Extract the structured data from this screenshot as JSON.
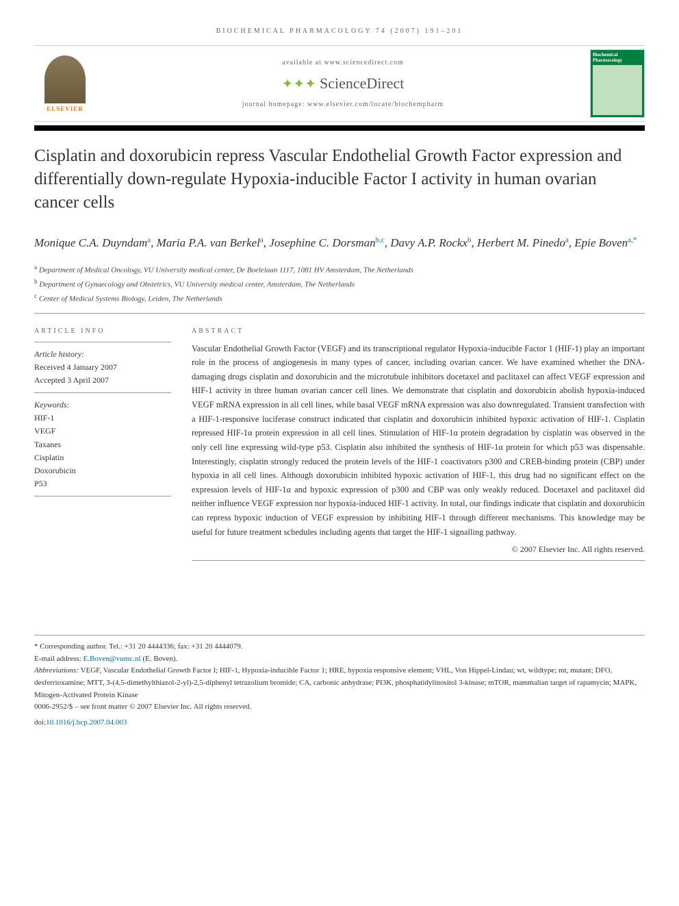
{
  "journal_header": "BIOCHEMICAL PHARMACOLOGY 74 (2007) 191–201",
  "available_at": "available at www.sciencedirect.com",
  "sciencedirect": "ScienceDirect",
  "homepage": "journal homepage: www.elsevier.com/locate/biochempharm",
  "elsevier": "ELSEVIER",
  "journal_cover_title": "Biochemical Pharmacology",
  "title": "Cisplatin and doxorubicin repress Vascular Endothelial Growth Factor expression and differentially down-regulate Hypoxia-inducible Factor I activity in human ovarian cancer cells",
  "authors": [
    {
      "name": "Monique C.A. Duyndam",
      "sup": "a"
    },
    {
      "name": "Maria P.A. van Berkel",
      "sup": "a"
    },
    {
      "name": "Josephine C. Dorsman",
      "sup": "b,c"
    },
    {
      "name": "Davy A.P. Rockx",
      "sup": "b"
    },
    {
      "name": "Herbert M. Pinedo",
      "sup": "a"
    },
    {
      "name": "Epie Boven",
      "sup": "a,*"
    }
  ],
  "affiliations": [
    {
      "sup": "a",
      "text": "Department of Medical Oncology, VU University medical center, De Boelelaan 1117, 1081 HV Amsterdam, The Netherlands"
    },
    {
      "sup": "b",
      "text": "Department of Gynaecology and Obstetrics, VU University medical center, Amsterdam, The Netherlands"
    },
    {
      "sup": "c",
      "text": "Center of Medical Systems Biology, Leiden, The Netherlands"
    }
  ],
  "article_info_label": "ARTICLE INFO",
  "article_history_label": "Article history:",
  "article_history": [
    "Received 4 January 2007",
    "Accepted 3 April 2007"
  ],
  "keywords_label": "Keywords:",
  "keywords": [
    "HIF-1",
    "VEGF",
    "Taxanes",
    "Cisplatin",
    "Doxorubicin",
    "P53"
  ],
  "abstract_label": "ABSTRACT",
  "abstract_text": "Vascular Endothelial Growth Factor (VEGF) and its transcriptional regulator Hypoxia-inducible Factor 1 (HIF-1) play an important role in the process of angiogenesis in many types of cancer, including ovarian cancer. We have examined whether the DNA-damaging drugs cisplatin and doxorubicin and the microtubule inhibitors docetaxel and paclitaxel can affect VEGF expression and HIF-1 activity in three human ovarian cancer cell lines. We demonstrate that cisplatin and doxorubicin abolish hypoxia-induced VEGF mRNA expression in all cell lines, while basal VEGF mRNA expression was also downregulated. Transient transfection with a HIF-1-responsive luciferase construct indicated that cisplatin and doxorubicin inhibited hypoxic activation of HIF-1. Cisplatin repressed HIF-1α protein expression in all cell lines. Stimulation of HIF-1α protein degradation by cisplatin was observed in the only cell line expressing wild-type p53. Cisplatin also inhibited the synthesis of HIF-1α protein for which p53 was dispensable. Interestingly, cisplatin strongly reduced the protein levels of the HIF-1 coactivators p300 and CREB-binding protein (CBP) under hypoxia in all cell lines. Although doxorubicin inhibited hypoxic activation of HIF-1, this drug had no significant effect on the expression levels of HIF-1α and hypoxic expression of p300 and CBP was only weakly reduced. Docetaxel and paclitaxel did neither influence VEGF expression nor hypoxia-induced HIF-1 activity. In total, our findings indicate that cisplatin and doxorubicin can repress hypoxic induction of VEGF expression by inhibiting HIF-1 through different mechanisms. This knowledge may be useful for future treatment schedules including agents that target the HIF-1 signalling pathway.",
  "copyright": "© 2007 Elsevier Inc. All rights reserved.",
  "corresponding": "* Corresponding author. Tel.: +31 20 4444336; fax: +31 20 4444079.",
  "email_label": "E-mail address:",
  "email": "E.Boven@vumc.nl",
  "email_suffix": "(E. Boven).",
  "abbreviations_label": "Abbreviations:",
  "abbreviations": "VEGF, Vascular Endothelial Growth Factor l; HIF-1, Hypoxia-inducible Factor 1; HRE, hypoxia responsive element; VHL, Von Hippel-Lindau; wt, wildtype; mt, mutant; DFO, desferrioxamine; MTT, 3-(4,5-dimethylthiazol-2-yl)-2,5-diphenyl tetrazolium bromide; CA, carbonic anhydrase; PI3K, phosphatidylinositol 3-kinase; mTOR, mammalian target of rapamycin; MAPK, Mitogen-Activated Protein Kinase",
  "footer_copyright": "0006-2952/$ – see front matter © 2007 Elsevier Inc. All rights reserved.",
  "doi_prefix": "doi:",
  "doi": "10.1016/j.bcp.2007.04.003",
  "colors": {
    "link": "#0066cc",
    "elsevier_orange": "#e67817",
    "sd_green": "#8bb843",
    "journal_green": "#008040"
  }
}
